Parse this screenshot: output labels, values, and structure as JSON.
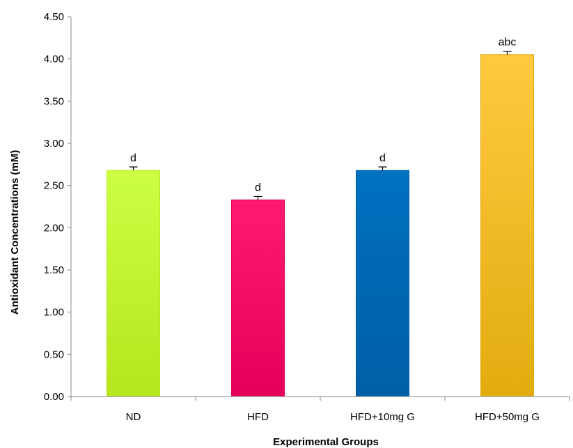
{
  "chart_data": {
    "type": "bar",
    "title": "",
    "xlabel": "Experimental Groups",
    "ylabel": "Antioxidant Concentrations (mM)",
    "categories": [
      "ND",
      "HFD",
      "HFD+10mg G",
      "HFD+50mg G"
    ],
    "values": [
      2.68,
      2.33,
      2.68,
      4.05
    ],
    "error": [
      0.04,
      0.04,
      0.04,
      0.04
    ],
    "significance_labels": [
      "d",
      "d",
      "d",
      "abc"
    ],
    "ylim": [
      0,
      4.5
    ],
    "yticks": [
      "0.00",
      "0.50",
      "1.00",
      "1.50",
      "2.00",
      "2.50",
      "3.00",
      "3.50",
      "4.00",
      "4.50"
    ],
    "grid": false,
    "legend": "none",
    "bar_colors": [
      {
        "light": "#ccff44",
        "dark": "#b5e61d"
      },
      {
        "light": "#ff1a6e",
        "dark": "#e5005a"
      },
      {
        "light": "#0070c0",
        "dark": "#005fa6"
      },
      {
        "light": "#ffc940",
        "dark": "#e2ac10"
      }
    ]
  }
}
